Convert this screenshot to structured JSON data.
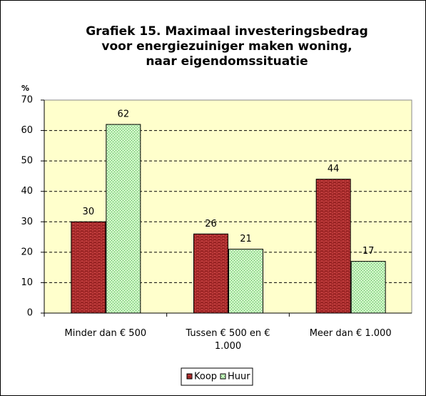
{
  "chart_data": {
    "type": "bar",
    "title": [
      "Grafiek 15. Maximaal investeringsbedrag",
      "voor energiezuiniger maken woning,",
      "naar eigendomssituatie"
    ],
    "ylabel": "%",
    "categories": [
      "Minder dan € 500",
      "Tussen € 500 en € 1.000",
      "Meer dan € 1.000"
    ],
    "series": [
      {
        "name": "Koop",
        "color": "#8b1a1a",
        "values": [
          30,
          26,
          44
        ]
      },
      {
        "name": "Huur",
        "color": "#c8f5c0",
        "values": [
          62,
          21,
          17
        ]
      }
    ],
    "ylim": [
      0,
      70
    ],
    "yticks": [
      0,
      10,
      20,
      30,
      40,
      50,
      60,
      70
    ],
    "grid": true,
    "plot_background": "#ffffcc",
    "legend": "bottom"
  }
}
